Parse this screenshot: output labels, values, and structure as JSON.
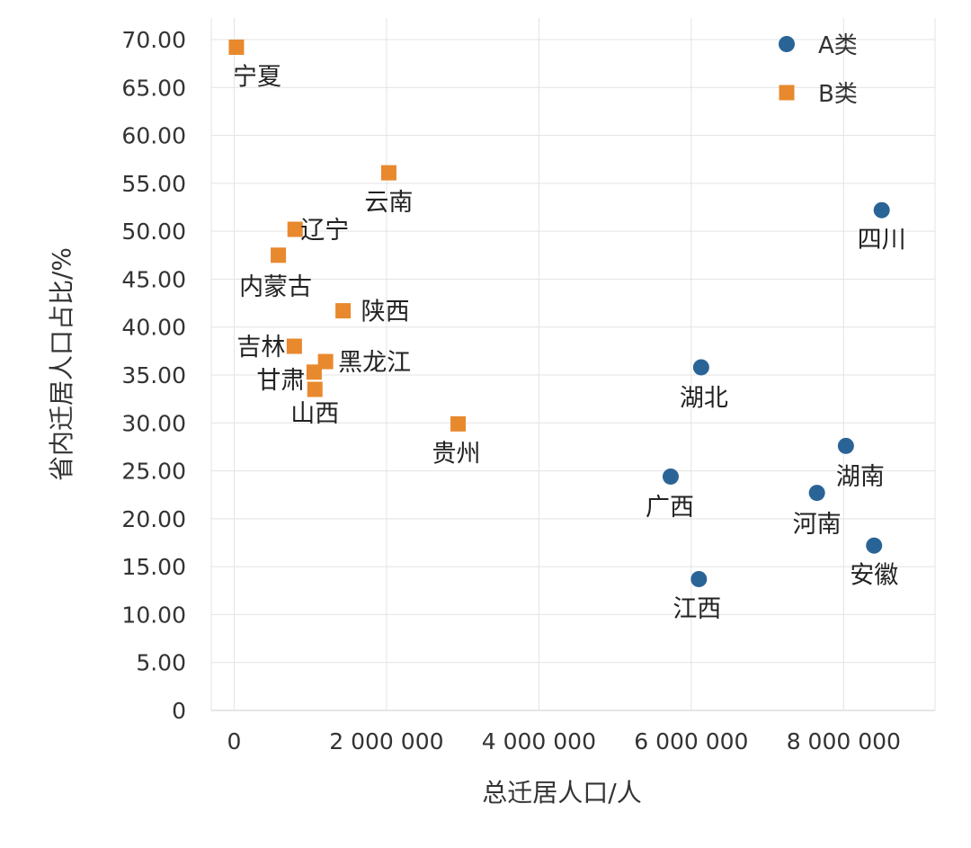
{
  "chart_data": {
    "type": "scatter",
    "xlabel": "总迁居人口/人",
    "ylabel": "省内迁居人口占比/%",
    "xlim": [
      -300000,
      9200000
    ],
    "ylim": [
      0,
      70
    ],
    "x_ticks": [
      0,
      2000000,
      4000000,
      6000000,
      8000000
    ],
    "x_tick_labels": [
      "0",
      "2 000 000",
      "4 000 000",
      "6 000 000",
      "8 000 000"
    ],
    "y_ticks": [
      0,
      5,
      10,
      15,
      20,
      25,
      30,
      35,
      40,
      45,
      50,
      55,
      60,
      65,
      70
    ],
    "y_tick_labels": [
      "0",
      "5.00",
      "10.00",
      "15.00",
      "20.00",
      "25.00",
      "30.00",
      "35.00",
      "40.00",
      "45.00",
      "50.00",
      "55.00",
      "60.00",
      "65.00",
      "70.00"
    ],
    "grid": true,
    "legend_position": "top-right",
    "series": [
      {
        "name": "A类",
        "marker": "circle",
        "color": "#2a6496",
        "points": [
          {
            "label": "四川",
            "x": 8500000,
            "y": 52.2
          },
          {
            "label": "湖北",
            "x": 6130000,
            "y": 35.8
          },
          {
            "label": "湖南",
            "x": 8030000,
            "y": 27.6
          },
          {
            "label": "广西",
            "x": 5730000,
            "y": 24.4
          },
          {
            "label": "河南",
            "x": 7650000,
            "y": 22.7
          },
          {
            "label": "安徽",
            "x": 8400000,
            "y": 17.2
          },
          {
            "label": "江西",
            "x": 6100000,
            "y": 13.7
          }
        ]
      },
      {
        "name": "B类",
        "marker": "square",
        "color": "#e8892e",
        "points": [
          {
            "label": "宁夏",
            "x": 30000,
            "y": 69.2
          },
          {
            "label": "云南",
            "x": 2030000,
            "y": 56.1
          },
          {
            "label": "辽宁",
            "x": 800000,
            "y": 50.2
          },
          {
            "label": "内蒙古",
            "x": 580000,
            "y": 47.5
          },
          {
            "label": "陕西",
            "x": 1430000,
            "y": 41.7
          },
          {
            "label": "吉林",
            "x": 790000,
            "y": 38.0
          },
          {
            "label": "黑龙江",
            "x": 1200000,
            "y": 36.4
          },
          {
            "label": "甘肃",
            "x": 1050000,
            "y": 35.3
          },
          {
            "label": "山西",
            "x": 1060000,
            "y": 33.5
          },
          {
            "label": "贵州",
            "x": 2940000,
            "y": 29.9
          }
        ]
      }
    ]
  }
}
